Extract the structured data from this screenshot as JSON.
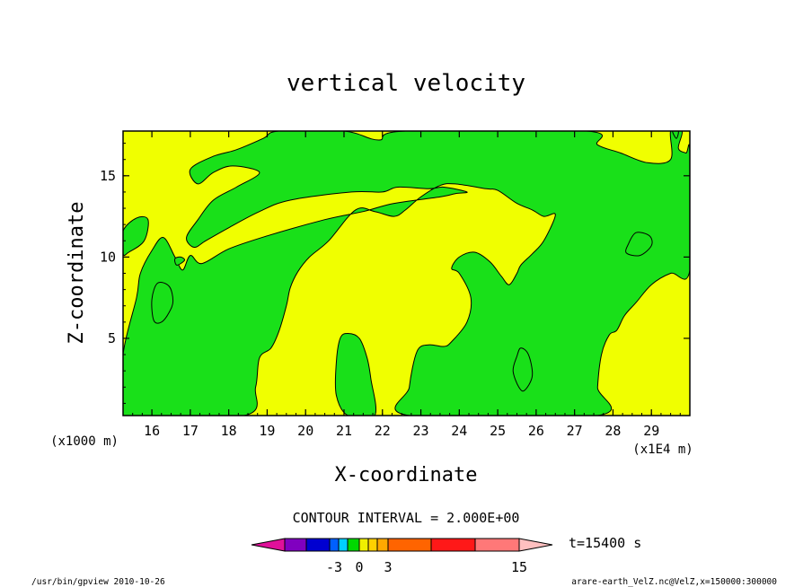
{
  "chart_data": {
    "type": "heatmap",
    "title": "vertical velocity",
    "xlabel": "X-coordinate",
    "ylabel": "Z-coordinate",
    "x_scale_note": "(x1E4 m)",
    "y_scale_note": "(x1000 m)",
    "xlim": [
      15.25,
      30.0
    ],
    "ylim": [
      0.25,
      17.75
    ],
    "x_ticks": [
      16,
      17,
      18,
      19,
      20,
      21,
      22,
      23,
      24,
      25,
      26,
      27,
      28,
      29
    ],
    "y_ticks": [
      5,
      10,
      15
    ],
    "contour_interval_label": "CONTOUR INTERVAL = 2.000E+00",
    "time_label": "t=15400 s",
    "colorbar": {
      "tick_labels": [
        "-3",
        "0",
        "3",
        "15"
      ],
      "tick_values": [
        -3,
        0,
        3,
        15
      ],
      "colors": [
        "#e0109a",
        "#8000c0",
        "#0000d0",
        "#0060ff",
        "#00d0ff",
        "#00d800",
        "#f0f000",
        "#ffd000",
        "#ffa800",
        "#ff6400",
        "#ff1818",
        "#ff7878",
        "#ffc0c0"
      ]
    },
    "field_colors": {
      "background": "#f0ff00",
      "region": "#19e019",
      "outline": "#000000"
    },
    "regions": [
      [
        [
          15.25,
          11.6
        ],
        [
          15.6,
          12.4
        ],
        [
          15.9,
          12.3
        ],
        [
          15.8,
          11.0
        ],
        [
          15.4,
          10.3
        ],
        [
          15.25,
          10.2
        ]
      ],
      [
        [
          15.25,
          0.25
        ],
        [
          15.25,
          4.0
        ],
        [
          15.6,
          7.5
        ],
        [
          15.7,
          9.0
        ],
        [
          16.0,
          10.4
        ],
        [
          16.3,
          11.2
        ],
        [
          16.6,
          10.0
        ],
        [
          16.8,
          9.2
        ],
        [
          17.0,
          10.1
        ],
        [
          17.3,
          9.6
        ],
        [
          18.0,
          10.5
        ],
        [
          19.0,
          11.3
        ],
        [
          20.5,
          12.3
        ],
        [
          21.5,
          12.8
        ],
        [
          22.3,
          13.3
        ],
        [
          23.5,
          13.7
        ],
        [
          23.9,
          13.9
        ],
        [
          24.2,
          14.0
        ],
        [
          23.6,
          14.3
        ],
        [
          23.2,
          14.2
        ],
        [
          22.4,
          14.3
        ],
        [
          22.0,
          14.0
        ],
        [
          21.2,
          14.0
        ],
        [
          19.6,
          13.5
        ],
        [
          18.8,
          12.8
        ],
        [
          18.0,
          11.8
        ],
        [
          17.4,
          11.0
        ],
        [
          17.1,
          10.6
        ],
        [
          16.9,
          11.2
        ],
        [
          17.2,
          12.3
        ],
        [
          17.6,
          13.5
        ],
        [
          18.2,
          14.3
        ],
        [
          18.8,
          15.2
        ],
        [
          18.1,
          15.6
        ],
        [
          17.6,
          15.2
        ],
        [
          17.2,
          14.5
        ],
        [
          17.0,
          15.4
        ],
        [
          17.6,
          16.2
        ],
        [
          18.2,
          16.6
        ],
        [
          18.9,
          17.3
        ],
        [
          19.3,
          17.75
        ],
        [
          21.0,
          17.75
        ],
        [
          21.9,
          17.2
        ],
        [
          22.6,
          17.75
        ],
        [
          27.3,
          17.75
        ],
        [
          27.6,
          16.9
        ],
        [
          28.2,
          16.4
        ],
        [
          28.9,
          15.8
        ],
        [
          29.5,
          16.0
        ],
        [
          29.5,
          17.75
        ],
        [
          29.8,
          17.75
        ],
        [
          29.7,
          16.7
        ],
        [
          29.9,
          16.4
        ],
        [
          30.0,
          16.4
        ],
        [
          30.0,
          9.2
        ],
        [
          29.5,
          9.0
        ],
        [
          29.0,
          8.3
        ],
        [
          28.6,
          7.2
        ],
        [
          28.3,
          6.4
        ],
        [
          28.1,
          5.5
        ],
        [
          27.9,
          5.2
        ],
        [
          27.7,
          4.0
        ],
        [
          27.6,
          2.0
        ],
        [
          27.6,
          0.25
        ],
        [
          22.7,
          0.25
        ],
        [
          22.7,
          2.0
        ],
        [
          22.9,
          4.2
        ],
        [
          23.2,
          4.6
        ],
        [
          23.6,
          4.5
        ],
        [
          23.8,
          4.8
        ],
        [
          24.2,
          6.0
        ],
        [
          24.3,
          7.5
        ],
        [
          24.0,
          9.0
        ],
        [
          23.8,
          9.3
        ],
        [
          24.0,
          10.0
        ],
        [
          24.4,
          10.3
        ],
        [
          24.8,
          9.7
        ],
        [
          25.1,
          8.8
        ],
        [
          25.3,
          8.3
        ],
        [
          25.5,
          9.0
        ],
        [
          25.6,
          9.5
        ],
        [
          25.9,
          10.2
        ],
        [
          26.2,
          11.0
        ],
        [
          26.5,
          12.6
        ],
        [
          26.2,
          12.5
        ],
        [
          25.9,
          12.9
        ],
        [
          25.5,
          13.3
        ],
        [
          25.0,
          14.1
        ],
        [
          24.7,
          14.2
        ],
        [
          23.9,
          14.5
        ],
        [
          23.5,
          14.4
        ],
        [
          23.0,
          13.7
        ],
        [
          22.6,
          12.9
        ],
        [
          22.3,
          12.5
        ],
        [
          21.8,
          12.8
        ],
        [
          21.3,
          12.9
        ],
        [
          20.6,
          11.0
        ],
        [
          20.1,
          10.0
        ],
        [
          19.8,
          9.1
        ],
        [
          19.6,
          8.1
        ],
        [
          19.5,
          7.0
        ],
        [
          19.3,
          5.4
        ],
        [
          19.1,
          4.4
        ],
        [
          18.8,
          3.8
        ],
        [
          18.7,
          2.0
        ],
        [
          18.4,
          0.25
        ]
      ],
      [
        [
          21.1,
          0.25
        ],
        [
          21.8,
          0.25
        ],
        [
          21.7,
          2.5
        ],
        [
          21.6,
          3.8
        ],
        [
          21.4,
          5.0
        ],
        [
          21.1,
          5.3
        ],
        [
          20.9,
          5.0
        ],
        [
          20.8,
          3.5
        ],
        [
          20.8,
          1.5
        ]
      ],
      [
        [
          16.15,
          8.4
        ],
        [
          16.45,
          8.2
        ],
        [
          16.55,
          7.3
        ],
        [
          16.45,
          6.6
        ],
        [
          16.25,
          6.0
        ],
        [
          16.05,
          6.1
        ],
        [
          16.0,
          7.4
        ]
      ],
      [
        [
          25.6,
          4.4
        ],
        [
          25.8,
          4.0
        ],
        [
          25.9,
          2.7
        ],
        [
          25.7,
          1.8
        ],
        [
          25.55,
          2.0
        ],
        [
          25.4,
          3.0
        ],
        [
          25.5,
          3.9
        ]
      ],
      [
        [
          28.4,
          10.8
        ],
        [
          28.6,
          11.5
        ],
        [
          28.95,
          11.3
        ],
        [
          29.0,
          10.7
        ],
        [
          28.7,
          10.1
        ],
        [
          28.35,
          10.25
        ]
      ],
      [
        [
          16.75,
          10.0
        ],
        [
          16.85,
          9.8
        ],
        [
          16.65,
          9.5
        ],
        [
          16.6,
          9.9
        ]
      ],
      [
        [
          29.55,
          17.75
        ],
        [
          29.7,
          17.75
        ],
        [
          29.65,
          17.3
        ]
      ]
    ]
  },
  "footer": {
    "left": "/usr/bin/gpview  2010-10-26",
    "right": "arare-earth_VelZ.nc@VelZ,x=150000:300000"
  }
}
